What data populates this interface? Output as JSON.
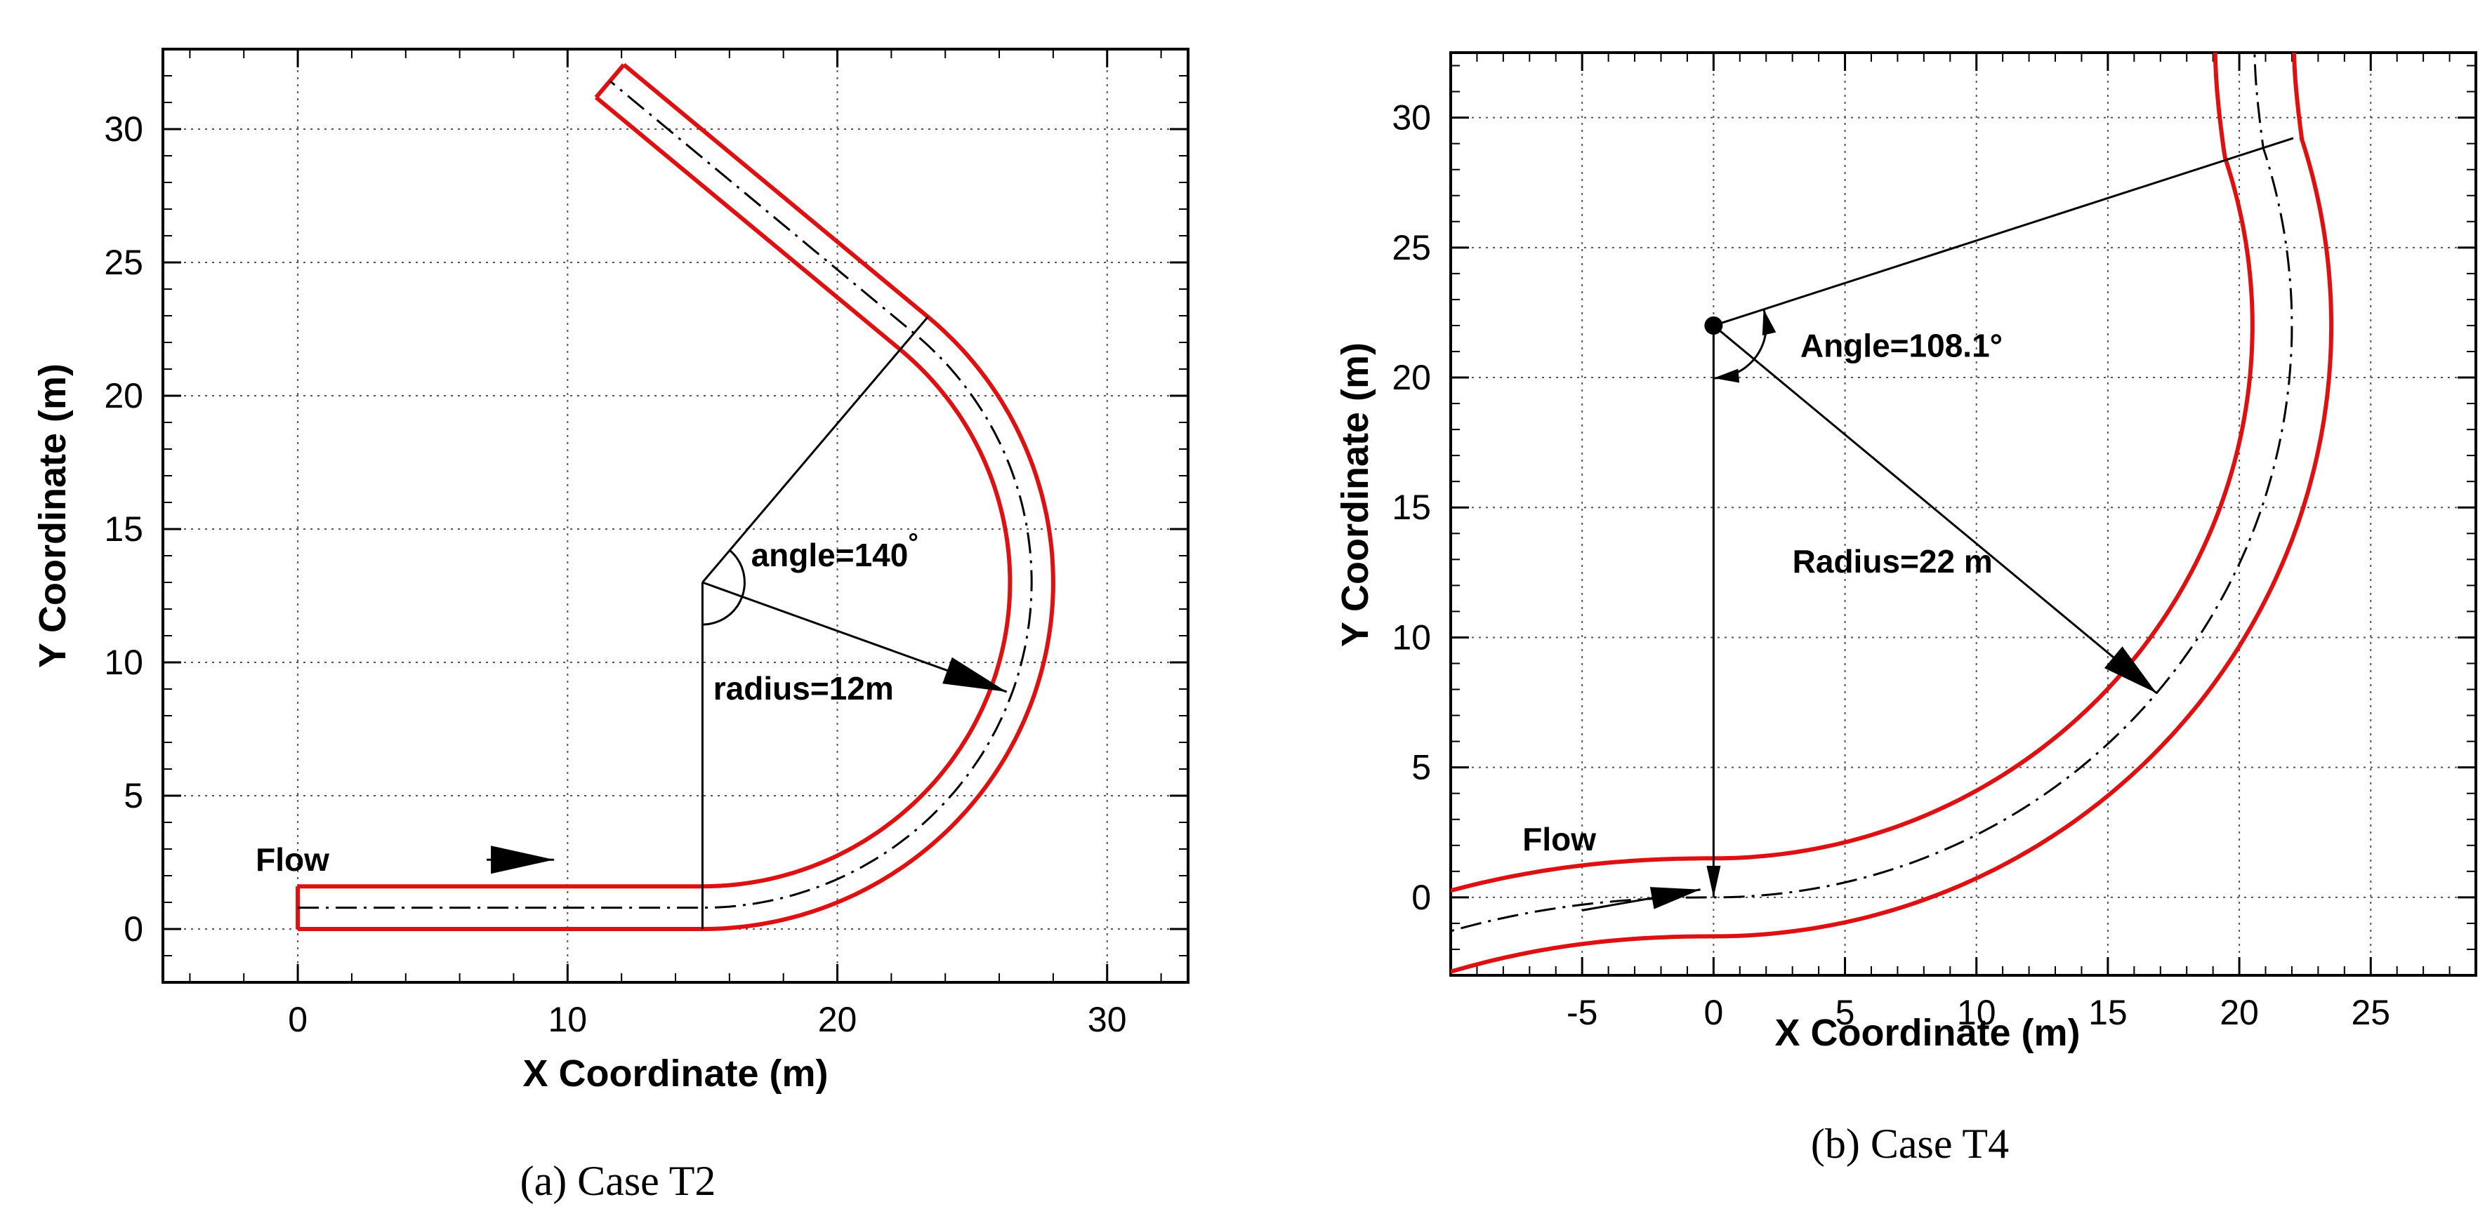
{
  "chart_data": [
    {
      "type": "line",
      "title": "",
      "caption": "(a) Case T2",
      "xlabel": "X Coordinate (m)",
      "ylabel": "Y Coordinate (m)",
      "xlim": [
        -5,
        33
      ],
      "ylim": [
        -2,
        33
      ],
      "xticks": [
        0,
        10,
        20,
        30
      ],
      "yticks": [
        0,
        5,
        10,
        15,
        20,
        25,
        30
      ],
      "x_minor_step": 2,
      "y_minor_step": 1,
      "grid": true,
      "channel": {
        "width_m": 1.6,
        "straight_inlet": {
          "x_start": 0,
          "x_end": 15,
          "y_center": 0.8
        },
        "bend": {
          "center": [
            15,
            13
          ],
          "radius_m": 12,
          "angle_deg": 140
        },
        "straight_outlet_end": [
          11.4,
          31.6
        ]
      },
      "annotations": [
        {
          "text": "Flow",
          "at": [
            0,
            2.6
          ]
        },
        {
          "text": "angle=140",
          "degree_symbol": "°",
          "at": [
            16.8,
            13.6
          ]
        },
        {
          "text": "radius=12m",
          "at": [
            15.4,
            8.6
          ]
        }
      ]
    },
    {
      "type": "line",
      "title": "",
      "caption": "(b) Case T4",
      "xlabel": "X Coordinate (m)",
      "ylabel": "Y Coordinate (m)",
      "xlim": [
        -10,
        29
      ],
      "ylim": [
        -3,
        32.5
      ],
      "xticks": [
        -5,
        0,
        5,
        10,
        15,
        20,
        25
      ],
      "yticks": [
        0,
        5,
        10,
        15,
        20,
        25,
        30
      ],
      "x_minor_step": 1,
      "y_minor_step": 1,
      "grid": true,
      "channel": {
        "width_m": 3.0,
        "bend": {
          "center": [
            0,
            22
          ],
          "radius_m": 22,
          "angle_deg": 108.1
        }
      },
      "annotations": [
        {
          "text": "Flow",
          "at": [
            -7,
            1.0
          ]
        },
        {
          "text": "Angle=108.1°",
          "at": [
            3.3,
            20.8
          ]
        },
        {
          "text": "Radius=22 m",
          "at": [
            3,
            12.5
          ]
        }
      ]
    }
  ]
}
